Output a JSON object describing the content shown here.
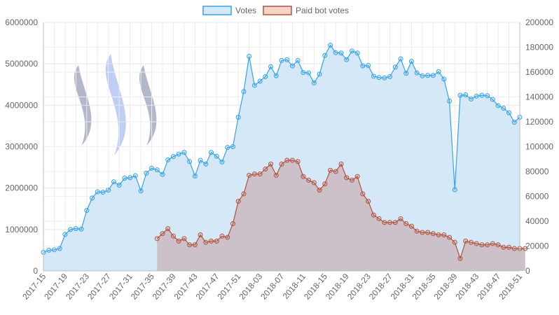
{
  "chart_data": {
    "type": "area",
    "x_labels_shown": [
      "2017-15",
      "2017-19",
      "2017-23",
      "2017-27",
      "2017-31",
      "2017-35",
      "2017-39",
      "2017-43",
      "2017-47",
      "2017-51",
      "2018-03",
      "2018-07",
      "2018-11",
      "2018-15",
      "2018-19",
      "2018-23",
      "2018-27",
      "2018-31",
      "2018-35",
      "2018-39",
      "2018-43",
      "2018-47",
      "2018-51"
    ],
    "y_left_ticks": [
      "0",
      "1000000",
      "2000000",
      "3000000",
      "4000000",
      "5000000",
      "6000000"
    ],
    "y_right_ticks": [
      "0",
      "20000",
      "40000",
      "60000",
      "80000",
      "100000",
      "120000",
      "140000",
      "160000",
      "180000",
      "200000"
    ],
    "y_left_range": [
      0,
      6000000
    ],
    "y_right_range": [
      0,
      200000
    ],
    "grid": true,
    "legend_position": "top-center",
    "colors": {
      "votes_line": "#36a2eb",
      "votes_fill": "#d5e8f7",
      "paid_line": "#b5513b",
      "paid_fill": "#cbbfc6",
      "logo": [
        "#b4b6ca",
        "#bfcef4",
        "#b4b6ca"
      ]
    },
    "series": [
      {
        "name": "Votes",
        "axis": "left",
        "values": [
          450000,
          500000,
          510000,
          540000,
          880000,
          1000000,
          1020000,
          1010000,
          1460000,
          1760000,
          1910000,
          1900000,
          1950000,
          2150000,
          2070000,
          2240000,
          2250000,
          2300000,
          1930000,
          2360000,
          2480000,
          2440000,
          2330000,
          2680000,
          2760000,
          2820000,
          2860000,
          2640000,
          2290000,
          2670000,
          2580000,
          2860000,
          2770000,
          2630000,
          2980000,
          3000000,
          3710000,
          4330000,
          5180000,
          4480000,
          4580000,
          4690000,
          4930000,
          4710000,
          5080000,
          5100000,
          4950000,
          5080000,
          4790000,
          4780000,
          4540000,
          4750000,
          5200000,
          5450000,
          5270000,
          5260000,
          5100000,
          5310000,
          5260000,
          4950000,
          4960000,
          4700000,
          4670000,
          4660000,
          4690000,
          4920000,
          5120000,
          4770000,
          5060000,
          4780000,
          4710000,
          4720000,
          4720000,
          4810000,
          4630000,
          4100000,
          1960000,
          4240000,
          4250000,
          4150000,
          4220000,
          4240000,
          4230000,
          4140000,
          3990000,
          3930000,
          3820000,
          3590000,
          3710000
        ]
      },
      {
        "name": "Paid bot votes",
        "axis": "right",
        "start_index": 21,
        "values": [
          26000,
          30000,
          34000,
          28000,
          24000,
          26000,
          21000,
          21000,
          29000,
          23000,
          24000,
          24000,
          28000,
          27000,
          38000,
          56000,
          62000,
          77000,
          78000,
          78000,
          82000,
          86000,
          77000,
          86000,
          89000,
          89000,
          88000,
          76000,
          73000,
          71000,
          65000,
          70000,
          81000,
          80000,
          86000,
          75000,
          73000,
          76000,
          62000,
          56000,
          45000,
          42000,
          39000,
          39000,
          39000,
          42000,
          38000,
          36000,
          32000,
          31000,
          31000,
          30000,
          29000,
          29000,
          27000,
          23000,
          10000,
          24000,
          23000,
          22000,
          21000,
          21000,
          22000,
          21000,
          19000,
          19000,
          18000,
          18000,
          18000
        ]
      }
    ]
  }
}
